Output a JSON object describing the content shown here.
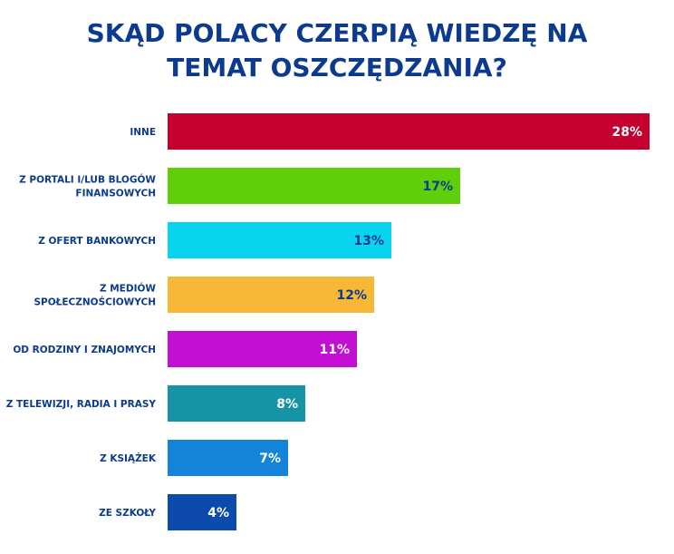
{
  "chart_data": {
    "type": "bar",
    "orientation": "horizontal",
    "title": "SKĄD POLACY CZERPIĄ WIEDZĘ NA TEMAT OSZCZĘDZANIA?",
    "categories": [
      [
        "INNE"
      ],
      [
        "Z PORTALI I/LUB BLOGÓW",
        "FINANSOWYCH"
      ],
      [
        "Z OFERT BANKOWYCH"
      ],
      [
        "Z MEDIÓW",
        "SPOŁECZNOŚCIOWYCH"
      ],
      [
        "OD RODZINY I ZNAJOMYCH"
      ],
      [
        "Z TELEWIZJI, RADIA I PRASY"
      ],
      [
        "Z KSIĄŻEK"
      ],
      [
        "ZE SZKOŁY"
      ]
    ],
    "values": [
      28,
      17,
      13,
      12,
      11,
      8,
      7,
      4
    ],
    "value_labels": [
      "28%",
      "17%",
      "13%",
      "12%",
      "11%",
      "8%",
      "7%",
      "4%"
    ],
    "unit": "%",
    "bar_colors": [
      "#c4012f",
      "#5fcf0a",
      "#08d4ef",
      "#f6b836",
      "#c20fd3",
      "#1694a6",
      "#1384da",
      "#0c4aad"
    ],
    "label_colors": [
      "#ffffff",
      "#0b3a8f",
      "#0b3a8f",
      "#0b3a8f",
      "#ffffff",
      "#ffffff",
      "#ffffff",
      "#ffffff"
    ],
    "xlim": [
      0,
      28
    ],
    "grid": false,
    "legend": "none"
  }
}
